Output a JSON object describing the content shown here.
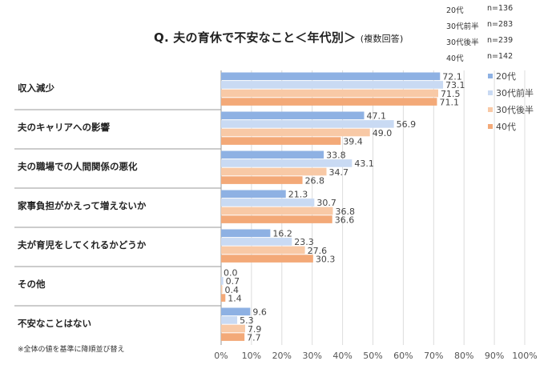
{
  "title": "Q. 夫の育休で不安なこと＜年代別＞",
  "subtitle": "(複数回答)",
  "note": "※全体の値を基準に降順並び替え",
  "sample_sizes": [
    {
      "label": "20代",
      "n": "n=136"
    },
    {
      "label": "30代前半",
      "n": "n=283"
    },
    {
      "label": "30代後半",
      "n": "n=239"
    },
    {
      "label": "40代",
      "n": "n=142"
    }
  ],
  "colors": [
    "#8eb1e3",
    "#c9daf3",
    "#f8c9a6",
    "#f3a978"
  ],
  "chart_data": {
    "type": "bar",
    "orientation": "horizontal",
    "categories": [
      "収入減少",
      "夫のキャリアへの影響",
      "夫の職場での人間関係の悪化",
      "家事負担がかえって増えないか",
      "夫が育児をしてくれるかどうか",
      "その他",
      "不安なことはない"
    ],
    "series": [
      {
        "name": "20代",
        "values": [
          72.1,
          47.1,
          33.8,
          21.3,
          16.2,
          0.0,
          9.6
        ]
      },
      {
        "name": "30代前半",
        "values": [
          73.1,
          56.9,
          43.1,
          30.7,
          23.3,
          0.7,
          5.3
        ]
      },
      {
        "name": "30代後半",
        "values": [
          71.5,
          49.0,
          34.7,
          36.8,
          27.6,
          0.4,
          7.9
        ]
      },
      {
        "name": "40代",
        "values": [
          71.1,
          39.4,
          26.8,
          36.6,
          30.3,
          1.4,
          7.7
        ]
      }
    ],
    "xlim": [
      0,
      100
    ],
    "x_ticks": [
      "0%",
      "10%",
      "20%",
      "30%",
      "40%",
      "50%",
      "60%",
      "70%",
      "80%",
      "90%",
      "100%"
    ],
    "grid": true,
    "legend": "right"
  }
}
